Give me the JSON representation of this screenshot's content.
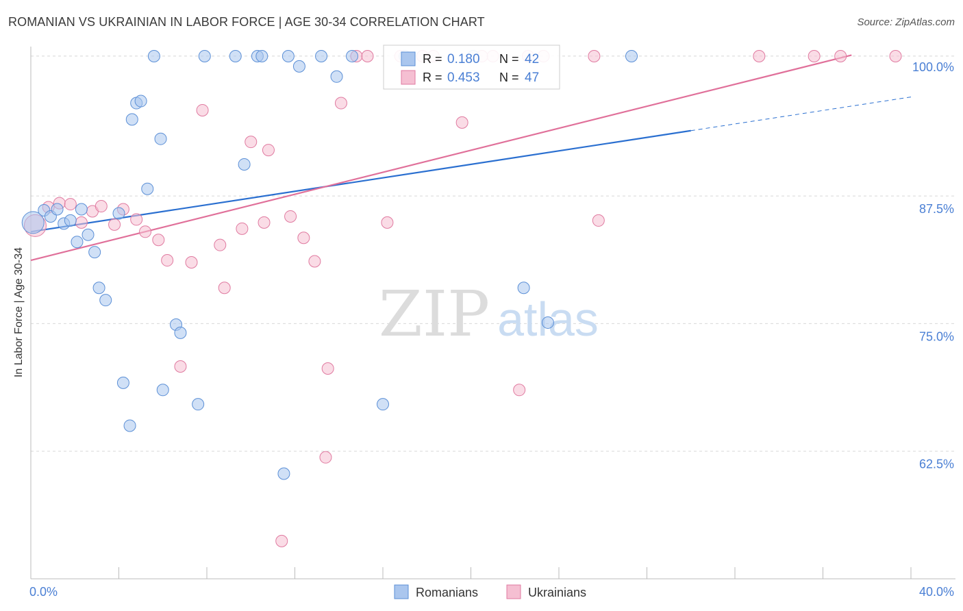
{
  "title": "ROMANIAN VS UKRAINIAN IN LABOR FORCE | AGE 30-34 CORRELATION CHART",
  "source": "Source: ZipAtlas.com",
  "watermark": {
    "zip": "ZIP",
    "atlas": "atlas"
  },
  "colors": {
    "blue": "#5b8fd6",
    "blue_fill": "#aac6ee",
    "blue_line": "#2a6fd0",
    "pink": "#e07aa0",
    "pink_fill": "#f5bfd2",
    "pink_line": "#e0709a",
    "axis_text": "#4a7fd4",
    "grid": "#d8d8d8"
  },
  "legend": {
    "rows": [
      {
        "r_label": "R =",
        "r_value": "0.180",
        "n_label": "N =",
        "n_value": "42",
        "series": "romanians"
      },
      {
        "r_label": "R =",
        "r_value": "0.453",
        "n_label": "N =",
        "n_value": "47",
        "series": "ukrainians"
      }
    ]
  },
  "bottom_legend": [
    {
      "label": "Romanians",
      "series": "romanians"
    },
    {
      "label": "Ukrainians",
      "series": "ukrainians"
    }
  ],
  "chart_data": {
    "type": "scatter",
    "title": "ROMANIAN VS UKRAINIAN IN LABOR FORCE | AGE 30-34 CORRELATION CHART",
    "xlabel": "",
    "ylabel": "In Labor Force | Age 30-34",
    "xlim": [
      0,
      40
    ],
    "ylim": [
      50,
      100
    ],
    "x_tick_labels": [
      {
        "value": 0,
        "label": "0.0%"
      },
      {
        "value": 40,
        "label": "40.0%"
      }
    ],
    "y_tick_labels": [
      {
        "value": 62.5,
        "label": "62.5%"
      },
      {
        "value": 75,
        "label": "75.0%"
      },
      {
        "value": 87.5,
        "label": "87.5%"
      },
      {
        "value": 100,
        "label": "100.0%"
      }
    ],
    "series": [
      {
        "name": "Romanians",
        "key": "romanians",
        "r": 0.18,
        "n": 42,
        "trend": {
          "x0": 0,
          "y0": 84.0,
          "x1": 30,
          "y1": 93.9,
          "dash_to_x": 40,
          "dash_to_y": 97.2
        },
        "points": [
          [
            0.1,
            84.9,
            "L"
          ],
          [
            0.6,
            86.1
          ],
          [
            0.9,
            85.5
          ],
          [
            1.2,
            86.2
          ],
          [
            1.5,
            84.8
          ],
          [
            1.8,
            85.1
          ],
          [
            2.1,
            83.0
          ],
          [
            2.3,
            86.2
          ],
          [
            2.6,
            83.7
          ],
          [
            2.9,
            82.0
          ],
          [
            3.1,
            78.5
          ],
          [
            3.4,
            77.3
          ],
          [
            4.0,
            85.8
          ],
          [
            4.2,
            69.2
          ],
          [
            4.5,
            65.0
          ],
          [
            4.6,
            95.0
          ],
          [
            4.8,
            96.6
          ],
          [
            5.0,
            96.8
          ],
          [
            5.3,
            88.2
          ],
          [
            5.6,
            101.2
          ],
          [
            5.9,
            93.1
          ],
          [
            6.0,
            68.5
          ],
          [
            6.6,
            74.9
          ],
          [
            6.8,
            74.1
          ],
          [
            7.6,
            67.1
          ],
          [
            7.9,
            101.2
          ],
          [
            9.3,
            101.2
          ],
          [
            9.7,
            90.6
          ],
          [
            10.3,
            101.2
          ],
          [
            10.5,
            101.2
          ],
          [
            11.5,
            60.3
          ],
          [
            11.7,
            101.2
          ],
          [
            12.2,
            100.2
          ],
          [
            13.2,
            101.2
          ],
          [
            13.9,
            99.2
          ],
          [
            14.6,
            101.2
          ],
          [
            16.0,
            67.1
          ],
          [
            20.1,
            101.2
          ],
          [
            22.4,
            78.5
          ],
          [
            23.5,
            75.1
          ],
          [
            27.3,
            101.2
          ],
          [
            17.0,
            101.2
          ]
        ]
      },
      {
        "name": "Ukrainians",
        "key": "ukrainians",
        "r": 0.453,
        "n": 47,
        "trend": {
          "x0": 0,
          "y0": 81.2,
          "x1": 37.3,
          "y1": 101.3
        },
        "points": [
          [
            0.2,
            84.6,
            "L"
          ],
          [
            0.8,
            86.4
          ],
          [
            1.3,
            86.8
          ],
          [
            1.8,
            86.7
          ],
          [
            2.3,
            84.9
          ],
          [
            2.8,
            86.0
          ],
          [
            3.2,
            86.5
          ],
          [
            3.8,
            84.7
          ],
          [
            4.2,
            86.2
          ],
          [
            4.8,
            85.2
          ],
          [
            5.2,
            84.0
          ],
          [
            5.8,
            83.2
          ],
          [
            6.2,
            81.2
          ],
          [
            6.8,
            70.8
          ],
          [
            7.3,
            81.0
          ],
          [
            7.8,
            95.9
          ],
          [
            8.6,
            82.7
          ],
          [
            8.8,
            78.5
          ],
          [
            9.6,
            84.3
          ],
          [
            10.0,
            92.8
          ],
          [
            10.6,
            84.9
          ],
          [
            10.8,
            92.0
          ],
          [
            11.4,
            53.7
          ],
          [
            11.8,
            85.5
          ],
          [
            12.4,
            83.4
          ],
          [
            12.9,
            81.1
          ],
          [
            13.4,
            61.9
          ],
          [
            13.5,
            70.6
          ],
          [
            14.1,
            96.6
          ],
          [
            14.8,
            101.2
          ],
          [
            15.3,
            101.2
          ],
          [
            16.2,
            84.9
          ],
          [
            17.8,
            101.2
          ],
          [
            18.3,
            101.2
          ],
          [
            19.6,
            94.7
          ],
          [
            21.0,
            101.2
          ],
          [
            22.2,
            68.5
          ],
          [
            22.6,
            101.2
          ],
          [
            23.3,
            101.2
          ],
          [
            25.6,
            101.2
          ],
          [
            25.8,
            85.1
          ],
          [
            33.1,
            101.2
          ],
          [
            35.6,
            101.2
          ],
          [
            36.8,
            101.2
          ],
          [
            39.3,
            101.2
          ],
          [
            20.5,
            101.2
          ],
          [
            16.8,
            101.2
          ]
        ]
      }
    ]
  }
}
